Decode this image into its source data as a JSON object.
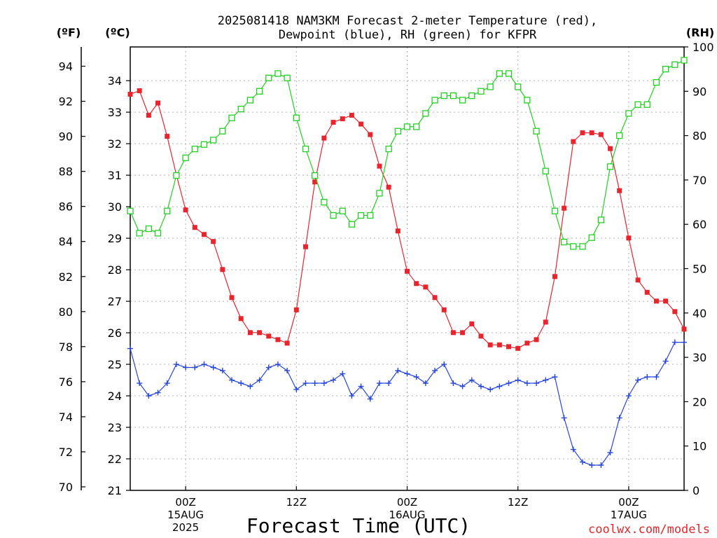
{
  "header": {
    "title_line1": "2025081418 NAM3KM Forecast 2-meter Temperature (red),",
    "title_line2": "Dewpoint (blue), RH (green) for KFPR"
  },
  "footer": {
    "xlabel": "Forecast Time (UTC)",
    "credit": "coolwx.com/models"
  },
  "chart_data": {
    "type": "line",
    "title": "2025081418 NAM3KM Forecast 2-meter Temperature (red), Dewpoint (blue), RH (green) for KFPR",
    "xlabel": "Forecast Time (UTC)",
    "axes": {
      "x": {
        "unit": "forecast hour from 2025-08-14 18Z",
        "range": [
          0,
          60
        ],
        "ticks": [
          {
            "hour": 6,
            "lines": [
              "00Z",
              "15AUG",
              "2025"
            ]
          },
          {
            "hour": 18,
            "lines": [
              "12Z"
            ]
          },
          {
            "hour": 30,
            "lines": [
              "00Z",
              "16AUG"
            ]
          },
          {
            "hour": 42,
            "lines": [
              "12Z"
            ]
          },
          {
            "hour": 54,
            "lines": [
              "00Z",
              "17AUG"
            ]
          }
        ]
      },
      "y_fahrenheit": {
        "label": "(ºF)",
        "range": [
          69.8,
          95.1
        ],
        "ticks": [
          70,
          72,
          74,
          76,
          78,
          80,
          82,
          84,
          86,
          88,
          90,
          92,
          94
        ]
      },
      "y_celsius": {
        "label": "(ºC)",
        "range": [
          21,
          35.07
        ],
        "ticks": [
          21,
          22,
          23,
          24,
          25,
          26,
          27,
          28,
          29,
          30,
          31,
          32,
          33,
          34
        ]
      },
      "y_rh": {
        "label": "(RH)",
        "range": [
          0,
          100
        ],
        "ticks": [
          0,
          10,
          20,
          30,
          40,
          50,
          60,
          70,
          80,
          90,
          100
        ]
      }
    },
    "grid": true,
    "series": [
      {
        "name": "Temperature",
        "axis": "y_fahrenheit",
        "color": "#e8242c",
        "marker": "filled-square",
        "x": [
          0,
          1,
          2,
          3,
          4,
          5,
          6,
          7,
          8,
          9,
          10,
          11,
          12,
          13,
          14,
          15,
          16,
          17,
          18,
          19,
          20,
          21,
          22,
          23,
          24,
          25,
          26,
          27,
          28,
          29,
          30,
          31,
          32,
          33,
          34,
          35,
          36,
          37,
          38,
          39,
          40,
          41,
          42,
          43,
          44,
          45,
          46,
          47,
          48,
          49,
          50,
          51,
          52,
          53,
          54,
          55,
          56,
          57,
          58,
          59,
          60
        ],
        "values": [
          92.4,
          92.6,
          91.2,
          91.9,
          90.0,
          87.8,
          85.8,
          84.8,
          84.4,
          84.0,
          82.4,
          80.8,
          79.6,
          78.8,
          78.8,
          78.6,
          78.4,
          78.2,
          80.1,
          83.7,
          87.4,
          89.9,
          90.8,
          91.0,
          91.2,
          90.7,
          90.1,
          88.3,
          87.1,
          84.6,
          82.3,
          81.6,
          81.4,
          80.8,
          80.1,
          78.8,
          78.8,
          79.3,
          78.6,
          78.1,
          78.1,
          78.0,
          77.9,
          78.2,
          78.4,
          79.4,
          82.0,
          85.9,
          89.7,
          90.2,
          90.2,
          90.1,
          89.3,
          86.9,
          84.2,
          81.8,
          81.1,
          80.6,
          80.6,
          80.0,
          79.0
        ]
      },
      {
        "name": "Dewpoint",
        "axis": "y_celsius",
        "color": "#2646dc",
        "marker": "plus",
        "x": [
          0,
          1,
          2,
          3,
          4,
          5,
          6,
          7,
          8,
          9,
          10,
          11,
          12,
          13,
          14,
          15,
          16,
          17,
          18,
          19,
          20,
          21,
          22,
          23,
          24,
          25,
          26,
          27,
          28,
          29,
          30,
          31,
          32,
          33,
          34,
          35,
          36,
          37,
          38,
          39,
          40,
          41,
          42,
          43,
          44,
          45,
          46,
          47,
          48,
          49,
          50,
          51,
          52,
          53,
          54,
          55,
          56,
          57,
          58,
          59,
          60
        ],
        "values": [
          25.5,
          24.4,
          24.0,
          24.1,
          24.4,
          25.0,
          24.9,
          24.9,
          25.0,
          24.9,
          24.8,
          24.5,
          24.4,
          24.3,
          24.5,
          24.9,
          25.0,
          24.8,
          24.2,
          24.4,
          24.4,
          24.4,
          24.5,
          24.7,
          24.0,
          24.3,
          23.9,
          24.4,
          24.4,
          24.8,
          24.7,
          24.6,
          24.4,
          24.8,
          25.0,
          24.4,
          24.3,
          24.5,
          24.3,
          24.2,
          24.3,
          24.4,
          24.5,
          24.4,
          24.4,
          24.5,
          24.6,
          23.3,
          22.3,
          21.9,
          21.8,
          21.8,
          22.2,
          23.3,
          24.0,
          24.5,
          24.6,
          24.6,
          25.1,
          25.7,
          25.7
        ]
      },
      {
        "name": "RH",
        "axis": "y_rh",
        "color": "#22d023",
        "marker": "open-square",
        "x": [
          0,
          1,
          2,
          3,
          4,
          5,
          6,
          7,
          8,
          9,
          10,
          11,
          12,
          13,
          14,
          15,
          16,
          17,
          18,
          19,
          20,
          21,
          22,
          23,
          24,
          25,
          26,
          27,
          28,
          29,
          30,
          31,
          32,
          33,
          34,
          35,
          36,
          37,
          38,
          39,
          40,
          41,
          42,
          43,
          44,
          45,
          46,
          47,
          48,
          49,
          50,
          51,
          52,
          53,
          54,
          55,
          56,
          57,
          58,
          59,
          60
        ],
        "values": [
          63,
          58,
          59,
          58,
          63,
          71,
          75,
          77,
          78,
          79,
          81,
          84,
          86,
          88,
          90,
          93,
          94,
          93,
          84,
          77,
          71,
          65,
          62,
          63,
          60,
          62,
          62,
          67,
          77,
          81,
          82,
          82,
          85,
          88,
          89,
          89,
          88,
          89,
          90,
          91,
          94,
          94,
          91,
          88,
          81,
          72,
          63,
          56,
          55,
          55,
          57,
          61,
          73,
          80,
          85,
          87,
          87,
          92,
          95,
          96,
          97
        ]
      }
    ]
  }
}
